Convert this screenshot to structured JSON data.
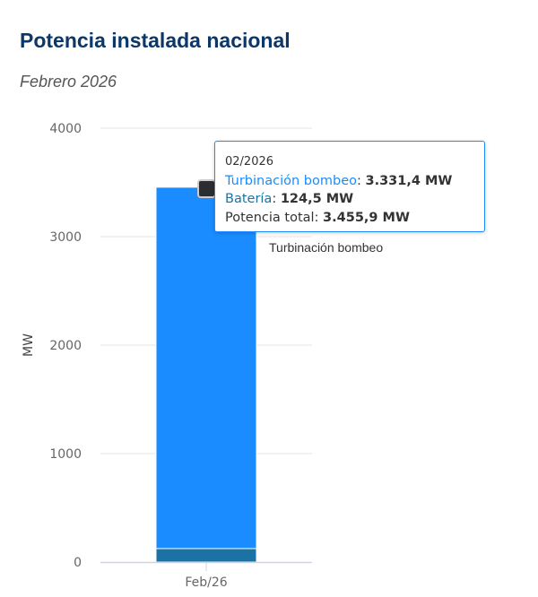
{
  "header": {
    "title": "Potencia instalada nacional",
    "subtitle": "Febrero 2026"
  },
  "chart_data": {
    "type": "bar",
    "stacked": true,
    "categories": [
      "Feb/26"
    ],
    "series": [
      {
        "name": "Batería",
        "values": [
          124.5
        ],
        "color": "#1a72a5"
      },
      {
        "name": "Turbinación bombeo",
        "values": [
          3331.4
        ],
        "color": "#1a8cff"
      }
    ],
    "ylabel": "MW",
    "ylim": [
      0,
      4000
    ],
    "yticks": [
      0,
      1000,
      2000,
      3000,
      4000
    ],
    "grid": true,
    "legend": {
      "label": "Turbinación bombeo",
      "marker_color": "#2b2d33"
    }
  },
  "tooltip": {
    "date": "02/2026",
    "rows": [
      {
        "label": "Turbinación bombeo",
        "value": "3.331,4 MW",
        "color": "#1a8cff"
      },
      {
        "label": "Batería",
        "value": "124,5 MW",
        "color": "#1a72a5"
      }
    ],
    "total_label": "Potencia total",
    "total_value": "3.455,9 MW"
  }
}
